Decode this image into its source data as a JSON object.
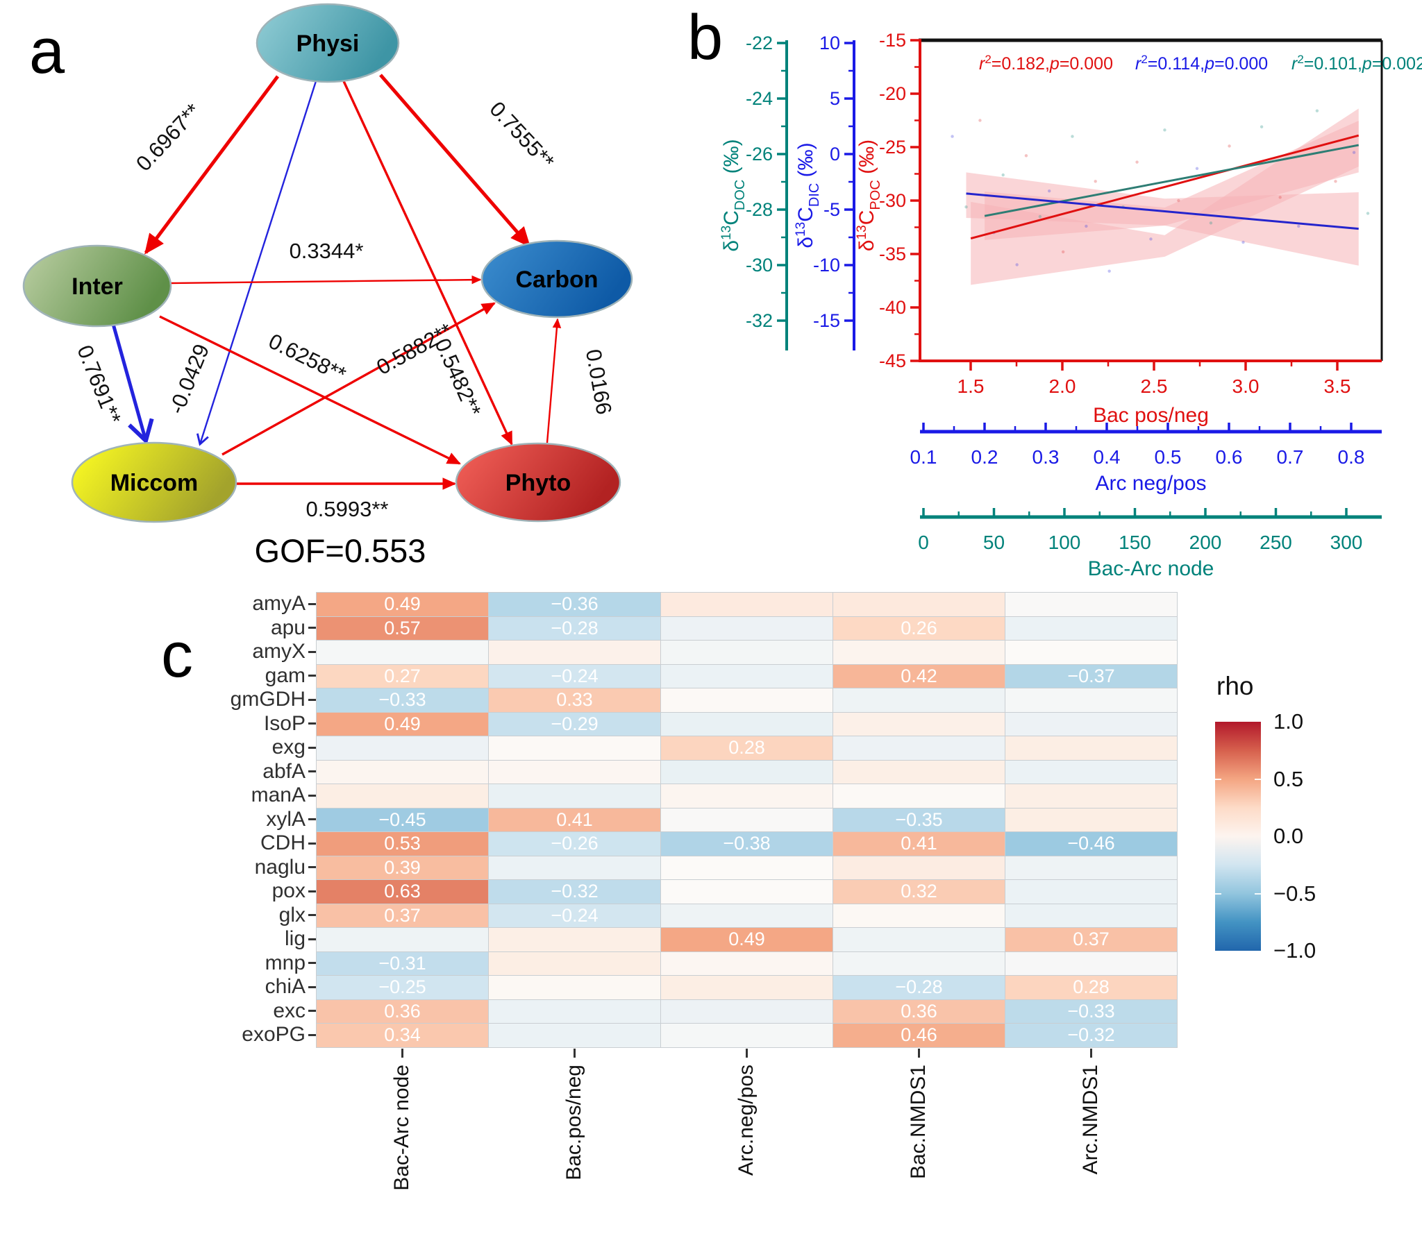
{
  "figure": {
    "panel_labels": {
      "a": "a",
      "b": "b",
      "c": "c"
    }
  },
  "chart_data": [
    {
      "type": "diagram",
      "kind": "structural-equation-path-model",
      "gof": "GOF=0.553",
      "nodes": [
        {
          "id": "Physi",
          "label": "Physi",
          "color_light": "#93ced6",
          "color_dark": "#3e95a5"
        },
        {
          "id": "Inter",
          "label": "Inter",
          "color_light": "#bccfa4",
          "color_dark": "#5f9048"
        },
        {
          "id": "Carbon",
          "label": "Carbon",
          "color_light": "#3d8ecf",
          "color_dark": "#0e5aa6"
        },
        {
          "id": "Miccom",
          "label": "Miccom",
          "color_light": "#ffff21",
          "color_dark": "#a3a32c"
        },
        {
          "id": "Phyto",
          "label": "Phyto",
          "color_light": "#f4625a",
          "color_dark": "#b22222"
        }
      ],
      "edges": [
        {
          "from": "Physi",
          "to": "Inter",
          "label": "0.6967**",
          "color": "#ee0000",
          "width": 5.0
        },
        {
          "from": "Physi",
          "to": "Carbon",
          "label": "0.7555**",
          "color": "#ee0000",
          "width": 5.0
        },
        {
          "from": "Physi",
          "to": "Miccom",
          "label": "-0.0429",
          "color": "#2323dd",
          "width": 2.4
        },
        {
          "from": "Physi",
          "to": "Phyto",
          "label": "0.5482**",
          "color": "#ee0000",
          "width": 3.4
        },
        {
          "from": "Inter",
          "to": "Carbon",
          "label": "0.3344*",
          "color": "#ee0000",
          "width": 2.4
        },
        {
          "from": "Inter",
          "to": "Miccom",
          "label": "0.7691**",
          "color": "#2323dd",
          "width": 5.0
        },
        {
          "from": "Inter",
          "to": "Phyto",
          "label": "0.6258**",
          "color": "#ee0000",
          "width": 3.4
        },
        {
          "from": "Miccom",
          "to": "Carbon",
          "label": "0.5882**",
          "color": "#ee0000",
          "width": 3.4
        },
        {
          "from": "Miccom",
          "to": "Phyto",
          "label": "0.5993**",
          "color": "#ee0000",
          "width": 3.4
        },
        {
          "from": "Phyto",
          "to": "Carbon",
          "label": "0.0166",
          "color": "#ee0000",
          "width": 2.4
        }
      ]
    },
    {
      "type": "scatter",
      "annotations": [
        {
          "r2": "0.182",
          "p": "0.000",
          "color": "#e01010"
        },
        {
          "r2": "0.114",
          "p": "0.000",
          "color": "#1a1ae6"
        },
        {
          "r2": "0.101",
          "p": "0.002",
          "color": "#00827a"
        }
      ],
      "y_axes": [
        {
          "id": "doc",
          "color": "#00827a",
          "title": {
            "delta": "δ",
            "iso": "13",
            "el": "C",
            "sub": "DOC",
            "unit": " (‰)"
          },
          "ticks": [
            "-22",
            "-24",
            "-26",
            "-28",
            "-30",
            "-32"
          ]
        },
        {
          "id": "dic",
          "color": "#1a1ae6",
          "title": {
            "delta": "δ",
            "iso": "13",
            "el": "C",
            "sub": "DIC",
            "unit": " (‰)"
          },
          "ticks": [
            "10",
            "5",
            "0",
            "-5",
            "-10",
            "-15"
          ]
        },
        {
          "id": "poc",
          "color": "#e01010",
          "title": {
            "delta": "δ",
            "iso": "13",
            "el": "C",
            "sub": "POC",
            "unit": " (‰)"
          },
          "ticks": [
            "-15",
            "-20",
            "-25",
            "-30",
            "-35",
            "-40",
            "-45"
          ]
        }
      ],
      "x_axes": [
        {
          "id": "bac",
          "color": "#e01010",
          "title": "Bac pos/neg",
          "ticks": [
            "1.5",
            "2.0",
            "2.5",
            "3.0",
            "3.5"
          ]
        },
        {
          "id": "arc",
          "color": "#1a1ae6",
          "title": "Arc neg/pos",
          "ticks": [
            "0.1",
            "0.2",
            "0.3",
            "0.4",
            "0.5",
            "0.6",
            "0.7",
            "0.8"
          ]
        },
        {
          "id": "node",
          "color": "#00827a",
          "title": "Bac-Arc node",
          "ticks": [
            "0",
            "50",
            "100",
            "150",
            "200",
            "250",
            "300"
          ]
        }
      ],
      "lines": [
        {
          "series": "Bac pos/neg vs δ13C POC",
          "color": "#e01010",
          "x1f": 0.11,
          "y1f": 0.618,
          "x2f": 0.95,
          "y2f": 0.297
        },
        {
          "series": "Bac-Arc node vs δ13C DOC",
          "color": "#2e7d74",
          "x1f": 0.14,
          "y1f": 0.548,
          "x2f": 0.95,
          "y2f": 0.327
        },
        {
          "series": "Arc neg/pos vs δ13C DIC",
          "color": "#2424cc",
          "x1f": 0.1,
          "y1f": 0.478,
          "x2f": 0.95,
          "y2f": 0.588
        }
      ],
      "bands": [
        {
          "pts": [
            [
              0.11,
              0.504
            ],
            [
              0.53,
              0.608
            ],
            [
              0.95,
              0.213
            ],
            [
              0.95,
              0.394
            ],
            [
              0.53,
              0.675
            ],
            [
              0.11,
              0.763
            ]
          ]
        },
        {
          "pts": [
            [
              0.14,
              0.472
            ],
            [
              0.53,
              0.522
            ],
            [
              0.95,
              0.251
            ],
            [
              0.95,
              0.412
            ],
            [
              0.53,
              0.578
            ],
            [
              0.14,
              0.623
            ]
          ]
        },
        {
          "pts": [
            [
              0.1,
              0.412
            ],
            [
              0.53,
              0.494
            ],
            [
              0.95,
              0.474
            ],
            [
              0.95,
              0.703
            ],
            [
              0.53,
              0.578
            ],
            [
              0.1,
              0.554
            ]
          ]
        }
      ],
      "band_color": "#f6b3b7",
      "points": [
        [
          0.07,
          0.3,
          "b"
        ],
        [
          0.1,
          0.52,
          "t"
        ],
        [
          0.13,
          0.25,
          "r"
        ],
        [
          0.16,
          0.6,
          "b"
        ],
        [
          0.18,
          0.42,
          "t"
        ],
        [
          0.21,
          0.7,
          "b"
        ],
        [
          0.23,
          0.36,
          "r"
        ],
        [
          0.26,
          0.55,
          "t"
        ],
        [
          0.28,
          0.47,
          "b"
        ],
        [
          0.31,
          0.66,
          "r"
        ],
        [
          0.33,
          0.3,
          "t"
        ],
        [
          0.36,
          0.58,
          "b"
        ],
        [
          0.38,
          0.44,
          "r"
        ],
        [
          0.41,
          0.72,
          "b"
        ],
        [
          0.44,
          0.52,
          "t"
        ],
        [
          0.47,
          0.38,
          "r"
        ],
        [
          0.5,
          0.62,
          "b"
        ],
        [
          0.53,
          0.28,
          "t"
        ],
        [
          0.56,
          0.5,
          "r"
        ],
        [
          0.6,
          0.4,
          "b"
        ],
        [
          0.63,
          0.57,
          "t"
        ],
        [
          0.67,
          0.33,
          "r"
        ],
        [
          0.7,
          0.63,
          "b"
        ],
        [
          0.74,
          0.27,
          "t"
        ],
        [
          0.78,
          0.49,
          "r"
        ],
        [
          0.82,
          0.58,
          "b"
        ],
        [
          0.86,
          0.22,
          "t"
        ],
        [
          0.9,
          0.44,
          "r"
        ],
        [
          0.94,
          0.35,
          "b"
        ],
        [
          0.97,
          0.54,
          "t"
        ]
      ]
    },
    {
      "type": "heatmap",
      "columns": [
        "Bac-Arc node",
        "Bac.pos/neg",
        "Arc.neg/pos",
        "Bac.NMDS1",
        "Arc.NMDS1"
      ],
      "rows": [
        {
          "label": "amyA",
          "values": [
            0.49,
            -0.36,
            0.13,
            0.14,
            -0.02
          ]
        },
        {
          "label": "apu",
          "values": [
            0.57,
            -0.28,
            -0.09,
            0.26,
            -0.1
          ]
        },
        {
          "label": "amyX",
          "values": [
            -0.04,
            0.07,
            -0.05,
            0.05,
            0.0
          ]
        },
        {
          "label": "gam",
          "values": [
            0.27,
            -0.24,
            -0.1,
            0.42,
            -0.37
          ]
        },
        {
          "label": "gmGDH",
          "values": [
            -0.33,
            0.33,
            0.01,
            -0.08,
            -0.04
          ]
        },
        {
          "label": "IsoP",
          "values": [
            0.49,
            -0.29,
            -0.11,
            0.08,
            -0.09
          ]
        },
        {
          "label": "exg",
          "values": [
            -0.09,
            0.01,
            0.28,
            -0.09,
            0.1
          ]
        },
        {
          "label": "abfA",
          "values": [
            0.04,
            0.03,
            -0.11,
            0.09,
            -0.1
          ]
        },
        {
          "label": "manA",
          "values": [
            0.1,
            -0.11,
            0.04,
            0.01,
            0.09
          ]
        },
        {
          "label": "xylA",
          "values": [
            -0.45,
            0.41,
            -0.02,
            -0.35,
            0.1
          ]
        },
        {
          "label": "CDH",
          "values": [
            0.53,
            -0.26,
            -0.38,
            0.41,
            -0.46
          ]
        },
        {
          "label": "naglu",
          "values": [
            0.39,
            -0.1,
            0.0,
            0.11,
            -0.08
          ]
        },
        {
          "label": "pox",
          "values": [
            0.63,
            -0.32,
            0.0,
            0.32,
            -0.1
          ]
        },
        {
          "label": "glx",
          "values": [
            0.37,
            -0.24,
            -0.08,
            0.02,
            -0.1
          ]
        },
        {
          "label": "lig",
          "values": [
            -0.08,
            0.09,
            0.49,
            -0.08,
            0.37
          ]
        },
        {
          "label": "mnp",
          "values": [
            -0.31,
            0.1,
            0.03,
            -0.06,
            -0.03
          ]
        },
        {
          "label": "chiA",
          "values": [
            -0.25,
            0.02,
            0.1,
            -0.28,
            0.28
          ]
        },
        {
          "label": "exc",
          "values": [
            0.36,
            -0.1,
            -0.09,
            0.36,
            -0.33
          ]
        },
        {
          "label": "exoPG",
          "values": [
            0.34,
            -0.1,
            -0.04,
            0.46,
            -0.32
          ]
        }
      ],
      "label_threshold": 0.24,
      "legend": {
        "title": "rho",
        "ticks": [
          "1.0",
          "0.5",
          "0.0",
          "−0.5",
          "−1.0"
        ]
      }
    }
  ]
}
